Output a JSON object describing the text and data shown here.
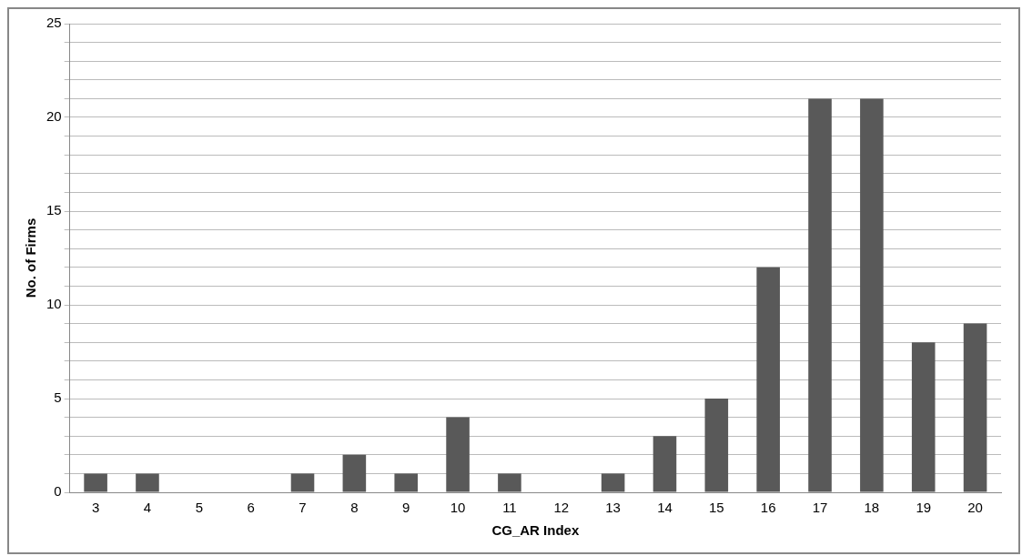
{
  "chart_data": {
    "type": "bar",
    "xlabel": "CG_AR Index",
    "ylabel": "No. of Firms",
    "categories": [
      "3",
      "4",
      "5",
      "6",
      "7",
      "8",
      "9",
      "10",
      "11",
      "12",
      "13",
      "14",
      "15",
      "16",
      "17",
      "18",
      "19",
      "20"
    ],
    "values": [
      1,
      1,
      0,
      0,
      1,
      2,
      1,
      4,
      1,
      0,
      1,
      3,
      5,
      12,
      21,
      21,
      8,
      9
    ],
    "color": "#595959",
    "ylim": [
      0,
      25
    ],
    "yticks": [
      0,
      {
        "value": 1,
        "label": null
      },
      {
        "value": 2,
        "label": null
      },
      {
        "value": 3,
        "label": null
      },
      {
        "value": 4,
        "label": null
      },
      5,
      {
        "value": 6,
        "label": null
      },
      {
        "value": 7,
        "label": null
      },
      {
        "value": 8,
        "label": null
      },
      {
        "value": 9,
        "label": null
      },
      10,
      {
        "value": 11,
        "label": null
      },
      {
        "value": 12,
        "label": null
      },
      {
        "value": 13,
        "label": null
      },
      {
        "value": 14,
        "label": null
      },
      15,
      {
        "value": 16,
        "label": null
      },
      {
        "value": 17,
        "label": null
      },
      {
        "value": 18,
        "label": null
      },
      {
        "value": 19,
        "label": null
      },
      20,
      {
        "value": 21,
        "label": null
      },
      {
        "value": 22,
        "label": null
      },
      {
        "value": 23,
        "label": null
      },
      {
        "value": 24,
        "label": null
      },
      25
    ],
    "grid": "y",
    "legend": false
  }
}
